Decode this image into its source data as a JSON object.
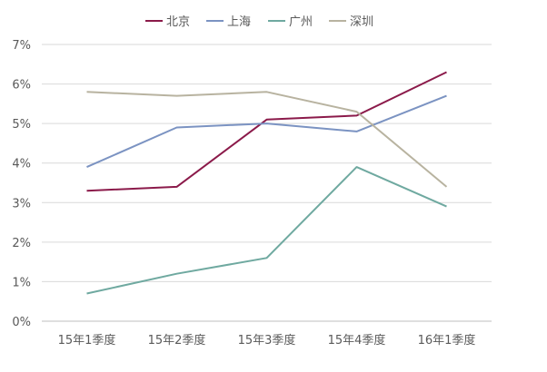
{
  "chart_data": {
    "type": "line",
    "categories": [
      "15年1季度",
      "15年2季度",
      "15年3季度",
      "15年4季度",
      "16年1季度"
    ],
    "ylim": [
      0,
      7
    ],
    "yticks": [
      0,
      1,
      2,
      3,
      4,
      5,
      6,
      7
    ],
    "ytick_labels": [
      "0%",
      "1%",
      "2%",
      "3%",
      "4%",
      "5%",
      "6%",
      "7%"
    ],
    "grid": true,
    "legend": "top-center",
    "series": [
      {
        "name": "北京",
        "color": "#8b1a4a",
        "values": [
          3.3,
          3.4,
          5.1,
          5.2,
          6.3
        ]
      },
      {
        "name": "上海",
        "color": "#7b93c2",
        "values": [
          3.9,
          4.9,
          5.0,
          4.8,
          5.7
        ]
      },
      {
        "name": "广州",
        "color": "#6fa9a0",
        "values": [
          0.7,
          1.2,
          1.6,
          3.9,
          2.9
        ]
      },
      {
        "name": "深圳",
        "color": "#b8b3a0",
        "values": [
          5.8,
          5.7,
          5.8,
          5.3,
          3.4
        ]
      }
    ]
  }
}
